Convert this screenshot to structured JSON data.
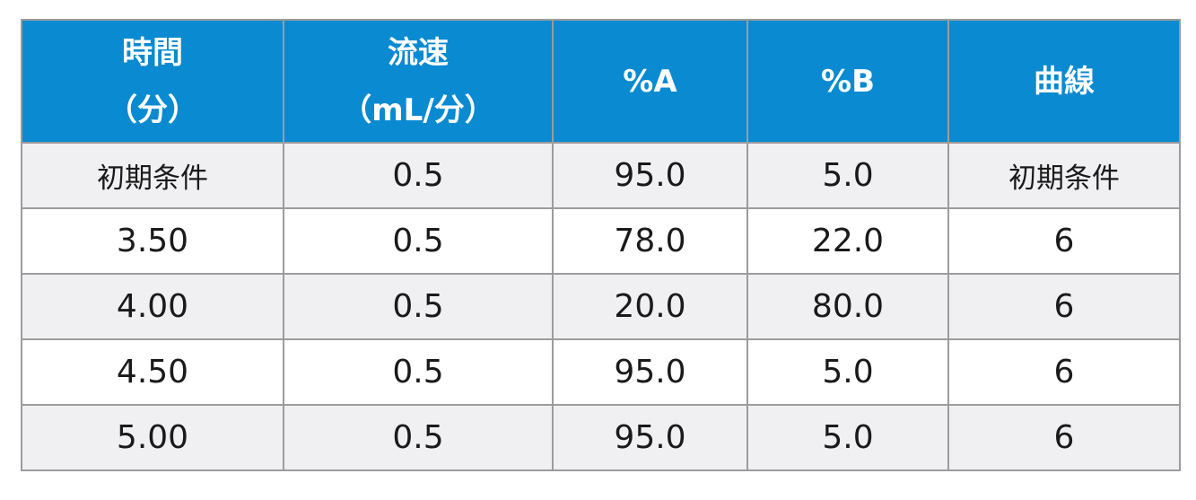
{
  "table": {
    "headers": [
      [
        "時間",
        "（分）"
      ],
      [
        "流速",
        "（mL/分）"
      ],
      [
        "%A"
      ],
      [
        "%B"
      ],
      [
        "曲線"
      ]
    ],
    "rows": [
      [
        "初期条件",
        "0.5",
        "95.0",
        "5.0",
        "初期条件"
      ],
      [
        "3.50",
        "0.5",
        "78.0",
        "22.0",
        "6"
      ],
      [
        "4.00",
        "0.5",
        "20.0",
        "80.0",
        "6"
      ],
      [
        "4.50",
        "0.5",
        "95.0",
        "5.0",
        "6"
      ],
      [
        "5.00",
        "0.5",
        "95.0",
        "5.0",
        "6"
      ]
    ]
  },
  "colors": {
    "header_background": "#0a8ad0",
    "header_text": "#ffffff",
    "row_shade": "#f0f0f3",
    "border": "#9c9c9c"
  }
}
